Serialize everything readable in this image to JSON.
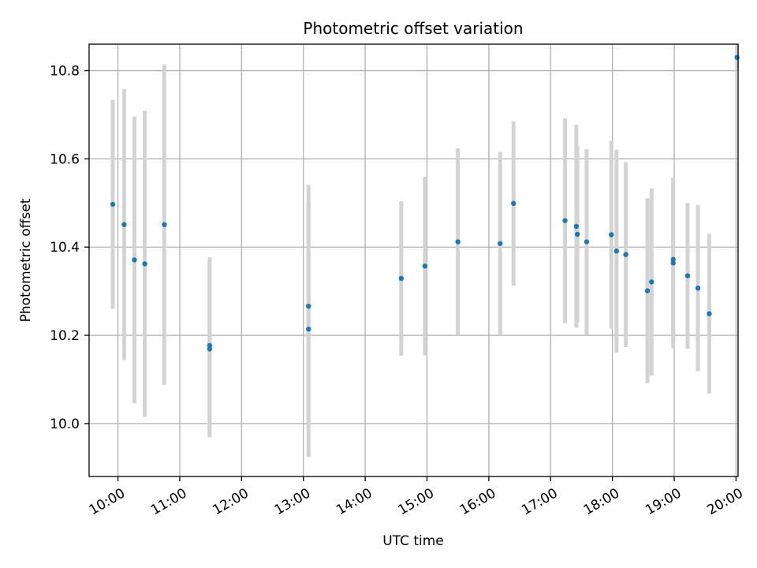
{
  "chart_data": {
    "type": "scatter",
    "title": "Photometric offset variation",
    "xlabel": "UTC time",
    "ylabel": "Photometric offset",
    "x_tick_labels": [
      "10:00",
      "11:00",
      "12:00",
      "13:00",
      "14:00",
      "15:00",
      "16:00",
      "17:00",
      "18:00",
      "19:00",
      "20:00"
    ],
    "y_tick_labels": [
      "10.0",
      "10.2",
      "10.4",
      "10.6",
      "10.8"
    ],
    "y_ticks": [
      10.0,
      10.2,
      10.4,
      10.6,
      10.8
    ],
    "xlim": [
      "09:32",
      "20:02"
    ],
    "ylim": [
      9.88,
      10.86
    ],
    "grid": true,
    "colors": {
      "marker": "#1f77b4",
      "error_bar": "#d3d3d3",
      "grid": "#b0b0b0"
    },
    "points": [
      {
        "t": "09:55",
        "y": 10.497,
        "err": 0.237
      },
      {
        "t": "10:06",
        "y": 10.451,
        "err": 0.307
      },
      {
        "t": "10:16",
        "y": 10.371,
        "err": 0.325
      },
      {
        "t": "10:26",
        "y": 10.362,
        "err": 0.347
      },
      {
        "t": "10:45",
        "y": 10.451,
        "err": 0.363
      },
      {
        "t": "11:29",
        "y": 10.177,
        "err": 0.2
      },
      {
        "t": "11:29",
        "y": 10.169,
        "err": 0.2
      },
      {
        "t": "13:05",
        "y": 10.266,
        "err": 0.275
      },
      {
        "t": "13:05",
        "y": 10.214,
        "err": 0.29
      },
      {
        "t": "14:35",
        "y": 10.329,
        "err": 0.175
      },
      {
        "t": "14:58",
        "y": 10.357,
        "err": 0.203
      },
      {
        "t": "15:30",
        "y": 10.412,
        "err": 0.212
      },
      {
        "t": "16:11",
        "y": 10.408,
        "err": 0.208
      },
      {
        "t": "16:24",
        "y": 10.499,
        "err": 0.186
      },
      {
        "t": "17:14",
        "y": 10.46,
        "err": 0.232
      },
      {
        "t": "17:25",
        "y": 10.447,
        "err": 0.23
      },
      {
        "t": "17:26",
        "y": 10.429,
        "err": 0.2
      },
      {
        "t": "17:35",
        "y": 10.412,
        "err": 0.21
      },
      {
        "t": "17:59",
        "y": 10.428,
        "err": 0.213
      },
      {
        "t": "18:04",
        "y": 10.391,
        "err": 0.23
      },
      {
        "t": "18:13",
        "y": 10.383,
        "err": 0.21
      },
      {
        "t": "18:34",
        "y": 10.301,
        "err": 0.21
      },
      {
        "t": "18:38",
        "y": 10.321,
        "err": 0.212
      },
      {
        "t": "18:59",
        "y": 10.372,
        "err": 0.185
      },
      {
        "t": "18:59",
        "y": 10.364,
        "err": 0.193
      },
      {
        "t": "19:13",
        "y": 10.335,
        "err": 0.165
      },
      {
        "t": "19:23",
        "y": 10.307,
        "err": 0.188
      },
      {
        "t": "19:34",
        "y": 10.249,
        "err": 0.181
      },
      {
        "t": "20:01",
        "y": 10.83,
        "err": 0.03
      }
    ]
  }
}
